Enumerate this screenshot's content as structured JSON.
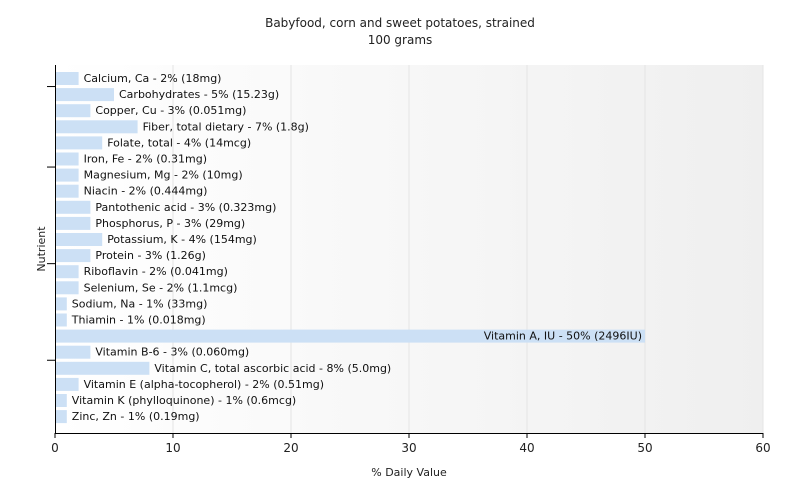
{
  "chart_data": {
    "type": "bar",
    "orientation": "horizontal",
    "title": "Babyfood, corn and sweet potatoes, strained",
    "subtitle": "100 grams",
    "xlabel": "% Daily Value",
    "ylabel": "Nutrient",
    "xlim": [
      0,
      60
    ],
    "xticks": [
      0,
      10,
      20,
      30,
      40,
      50,
      60
    ],
    "grid": true,
    "bar_color": "#cce0f5",
    "categories": [
      "Calcium, Ca - 2% (18mg)",
      "Carbohydrates - 5% (15.23g)",
      "Copper, Cu - 3% (0.051mg)",
      "Fiber, total dietary - 7% (1.8g)",
      "Folate, total - 4% (14mcg)",
      "Iron, Fe - 2% (0.31mg)",
      "Magnesium, Mg - 2% (10mg)",
      "Niacin - 2% (0.444mg)",
      "Pantothenic acid - 3% (0.323mg)",
      "Phosphorus, P - 3% (29mg)",
      "Potassium, K - 4% (154mg)",
      "Protein - 3% (1.26g)",
      "Riboflavin - 2% (0.041mg)",
      "Selenium, Se - 2% (1.1mcg)",
      "Sodium, Na - 1% (33mg)",
      "Thiamin - 1% (0.018mg)",
      "Vitamin A, IU - 50% (2496IU)",
      "Vitamin B-6 - 3% (0.060mg)",
      "Vitamin C, total ascorbic acid - 8% (5.0mg)",
      "Vitamin E (alpha-tocopherol) - 2% (0.51mg)",
      "Vitamin K (phylloquinone) - 1% (0.6mcg)",
      "Zinc, Zn - 1% (0.19mg)"
    ],
    "values": [
      2,
      5,
      3,
      7,
      4,
      2,
      2,
      2,
      3,
      3,
      4,
      3,
      2,
      2,
      1,
      1,
      50,
      3,
      8,
      2,
      1,
      1
    ]
  }
}
